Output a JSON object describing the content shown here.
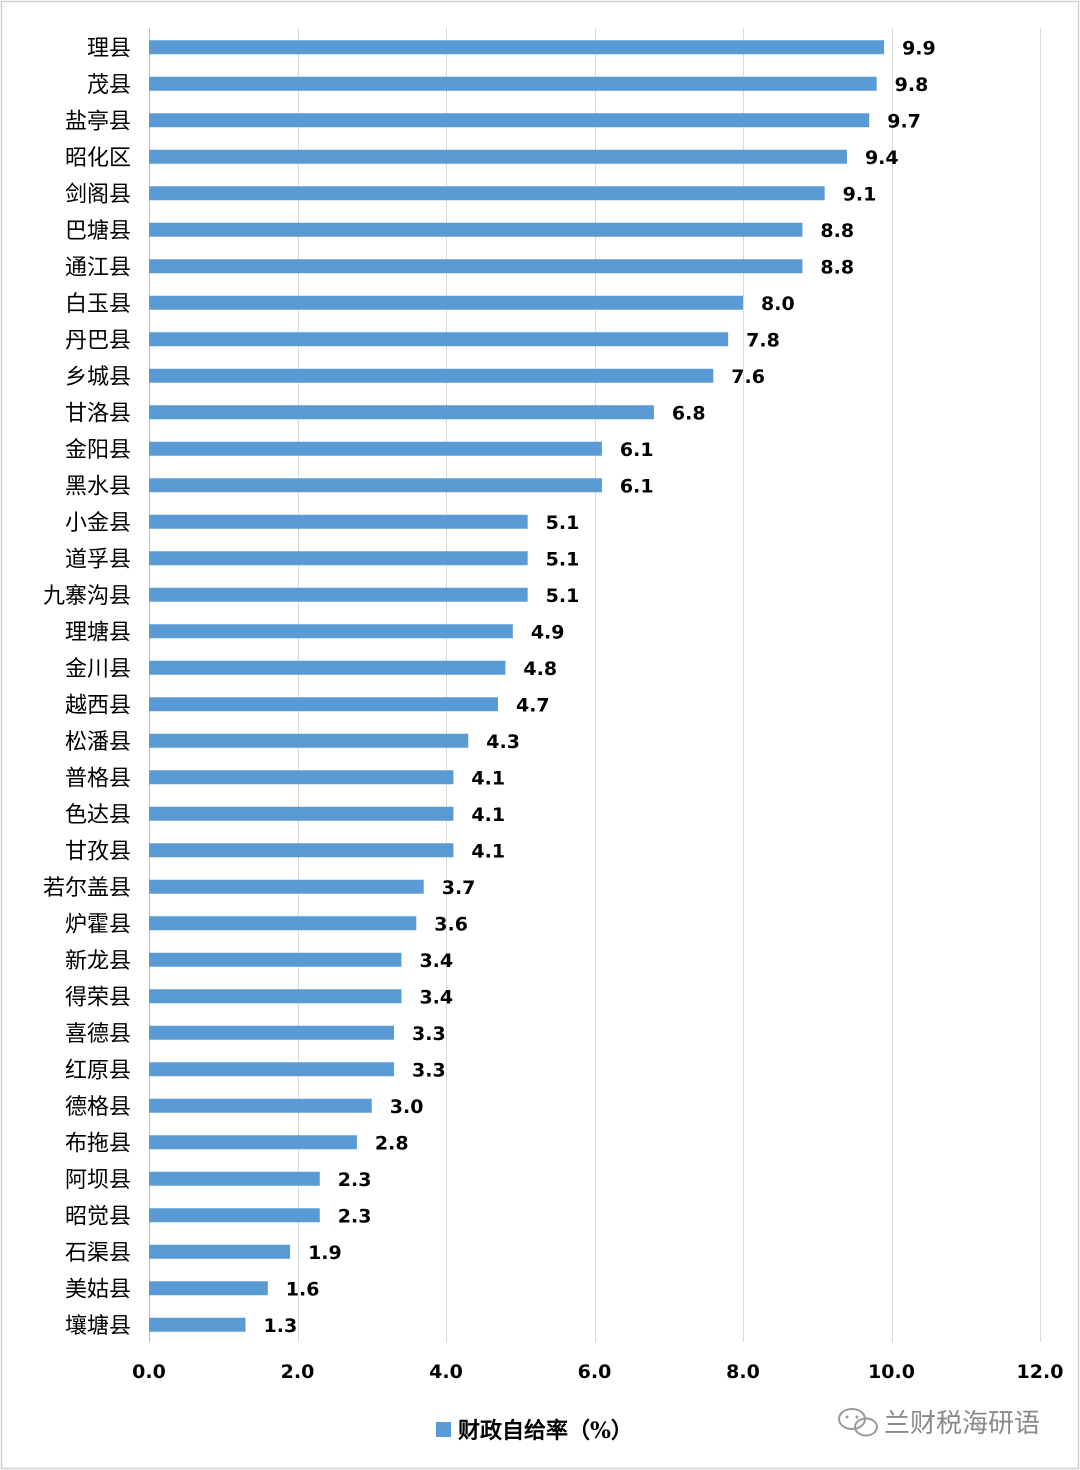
{
  "chart_data": {
    "type": "bar",
    "orientation": "horizontal",
    "categories": [
      "理县",
      "茂县",
      "盐亭县",
      "昭化区",
      "剑阁县",
      "巴塘县",
      "通江县",
      "白玉县",
      "丹巴县",
      "乡城县",
      "甘洛县",
      "金阳县",
      "黑水县",
      "小金县",
      "道孚县",
      "九寨沟县",
      "理塘县",
      "金川县",
      "越西县",
      "松潘县",
      "普格县",
      "色达县",
      "甘孜县",
      "若尔盖县",
      "炉霍县",
      "新龙县",
      "得荣县",
      "喜德县",
      "红原县",
      "德格县",
      "布拖县",
      "阿坝县",
      "昭觉县",
      "石渠县",
      "美姑县",
      "壤塘县"
    ],
    "series": [
      {
        "name": "财政自给率（%）",
        "color": "#5b9bd5",
        "values": [
          9.9,
          9.8,
          9.7,
          9.4,
          9.1,
          8.8,
          8.8,
          8.0,
          7.8,
          7.6,
          6.8,
          6.1,
          6.1,
          5.1,
          5.1,
          5.1,
          4.9,
          4.8,
          4.7,
          4.3,
          4.1,
          4.1,
          4.1,
          3.7,
          3.6,
          3.4,
          3.4,
          3.3,
          3.3,
          3.0,
          2.8,
          2.3,
          2.3,
          1.9,
          1.6,
          1.3
        ],
        "labels": [
          "9.9",
          "9.8",
          "9.7",
          "9.4",
          "9.1",
          "8.8",
          "8.8",
          "8.0",
          "7.8",
          "7.6",
          "6.8",
          "6.1",
          "6.1",
          "5.1",
          "5.1",
          "5.1",
          "4.9",
          "4.8",
          "4.7",
          "4.3",
          "4.1",
          "4.1",
          "4.1",
          "3.7",
          "3.6",
          "3.4",
          "3.4",
          "3.3",
          "3.3",
          "3.0",
          "2.8",
          "2.3",
          "2.3",
          "1.9",
          "1.6",
          "1.3"
        ]
      }
    ],
    "xlim": [
      0,
      12
    ],
    "xticks": [
      0,
      2,
      4,
      6,
      8,
      10,
      12
    ],
    "xtick_labels": [
      "0.0",
      "2.0",
      "4.0",
      "6.0",
      "8.0",
      "10.0",
      "12.0"
    ],
    "title": "",
    "xlabel": "",
    "ylabel": "",
    "grid": "vertical",
    "legend_position": "bottom"
  },
  "watermark": {
    "text": "兰财税海研语",
    "icon": "wechat-icon"
  }
}
